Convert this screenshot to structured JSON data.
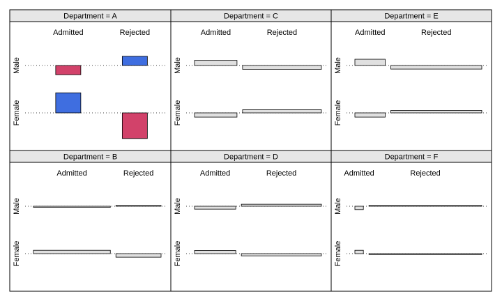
{
  "chart_data": {
    "type": "mosaic",
    "facet_prefix": "Department = ",
    "columns": [
      "Admitted",
      "Rejected"
    ],
    "rows": [
      "Male",
      "Female"
    ],
    "measure": "Pearson residual (signed deviation from independence; shown by box height and direction)",
    "positive_color": "#3f6ee0",
    "negative_color": "#d2426a",
    "neutral_color": "#e0e0e0",
    "panels": [
      {
        "department": "A",
        "col_widths": [
          0.57,
          0.43
        ],
        "residuals": {
          "Male": [
            -4.15,
            4.15
          ],
          "Female": [
            9.0,
            -11.5
          ]
        }
      },
      {
        "department": "B",
        "col_widths": [
          0.63,
          0.37
        ],
        "residuals": {
          "Male": [
            -0.5,
            0.4
          ],
          "Female": [
            1.5,
            -1.6
          ]
        }
      },
      {
        "department": "C",
        "col_widths": [
          0.35,
          0.65
        ],
        "residuals": {
          "Male": [
            2.3,
            -1.7
          ],
          "Female": [
            -1.9,
            1.4
          ]
        }
      },
      {
        "department": "D",
        "col_widths": [
          0.34,
          0.66
        ],
        "residuals": {
          "Male": [
            -1.3,
            0.9
          ],
          "Female": [
            1.4,
            -1.0
          ]
        }
      },
      {
        "department": "E",
        "col_widths": [
          0.25,
          0.75
        ],
        "residuals": {
          "Male": [
            2.8,
            -1.6
          ],
          "Female": [
            -1.9,
            1.1
          ]
        }
      },
      {
        "department": "F",
        "col_widths": [
          0.07,
          0.93
        ],
        "residuals": {
          "Male": [
            -1.5,
            0.4
          ],
          "Female": [
            1.5,
            -0.4
          ]
        }
      }
    ]
  }
}
